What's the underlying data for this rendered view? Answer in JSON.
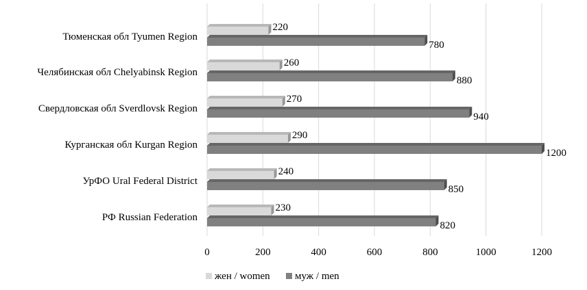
{
  "chart_data": {
    "type": "bar",
    "orientation": "horizontal",
    "style": "3d",
    "categories": [
      "Тюменская обл Tyumen Region",
      "Челябинская обл Chelyabinsk Region",
      "Свердловская обл   Sverdlovsk Region",
      "Курганская обл Kurgan Region",
      "УрФО Ural Federal District",
      "РФ Russian Federation"
    ],
    "series": [
      {
        "name": "жен / women",
        "color": "#d9d9d9",
        "values": [
          220,
          260,
          270,
          290,
          240,
          230
        ]
      },
      {
        "name": "муж / men",
        "color": "#808080",
        "values": [
          780,
          880,
          940,
          1200,
          850,
          820
        ]
      }
    ],
    "xlim": [
      0,
      1200
    ],
    "xticks": [
      "0",
      "200",
      "400",
      "600",
      "800",
      "1000",
      "1200"
    ],
    "grid": true,
    "legend_position": "bottom"
  }
}
